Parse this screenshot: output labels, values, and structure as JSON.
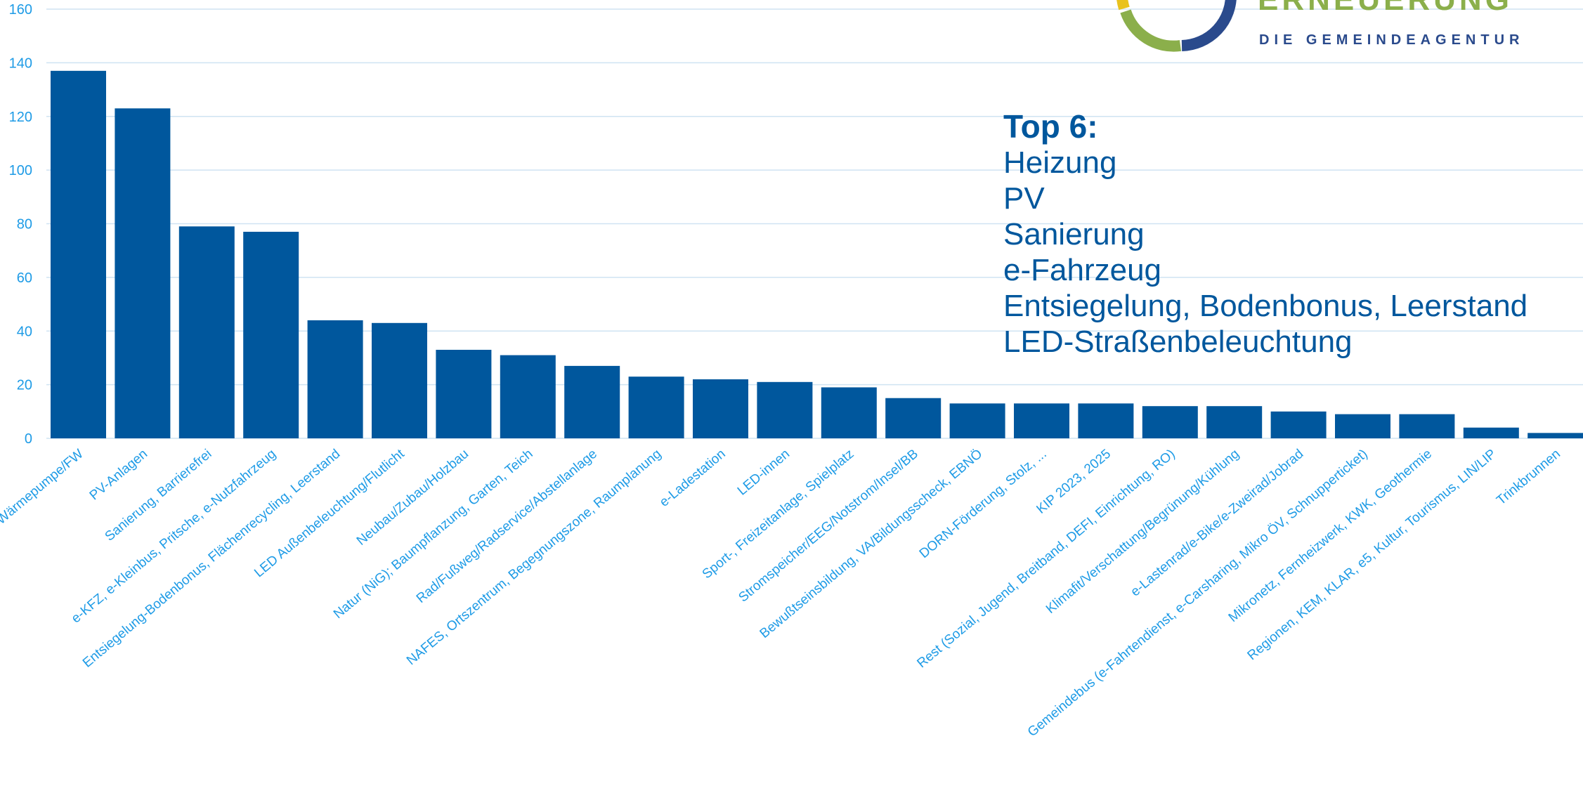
{
  "chart_data": {
    "type": "bar",
    "categories": [
      "Wärmepumpe/FW",
      "PV-Anlagen",
      "Sanierung, Barrierefrei",
      "e-KFZ, e-Kleinbus, Pritsche, e-Nutzfahrzeug",
      "Entsiegelung-Bodenbonus, Flächenrecycling, Leerstand",
      "LED Außenbeleuchtung/Flutlicht",
      "Neubau/Zubau/Holzbau",
      "Natur (NiG); Baumpflanzung, Garten, Teich",
      "Rad/Fußweg/Radservice/Abstellanlage",
      "NAFES, Ortszentrum, Begegnungszone, Raumplanung",
      "e-Ladestation",
      "LED-innen",
      "Sport-, Freizeitanlage, Spielplatz",
      "Stromspeicher/EEG/Notstrom/Insel/BB",
      "Bewußtseinsbildung, VA/Bildungsscheck, EBNÖ",
      "DORN-Förderung, Stolz, ...",
      "KIP 2023, 2025",
      "Rest (Sozial, Jugend, Breitband, DEFI, Einrichtung, RO)",
      "Klimafit/Verschattung/Begrünung/Kühlung",
      "e-Lastenrad/e-Bike/e-Zweirad/Jobrad",
      "Gemeindebus (e-Fahrtendienst, e-Carsharing, Mikro ÖV, Schnupperticket)",
      "Mikronetz, Fernheizwerk, KWK, Geothermie",
      "Regionen, KEM, KLAR, e5, Kultur, Tourismus, LIN/LIP",
      "Trinkbrunnen"
    ],
    "values": [
      137,
      123,
      79,
      77,
      44,
      43,
      33,
      31,
      27,
      23,
      22,
      21,
      19,
      15,
      13,
      13,
      13,
      12,
      12,
      10,
      9,
      9,
      4,
      2
    ],
    "y_ticks": [
      "0",
      "20",
      "40",
      "60",
      "80",
      "100",
      "120",
      "140",
      "160"
    ],
    "ylim": [
      0,
      160
    ],
    "grid": true,
    "colors": {
      "bar": "#00579D",
      "tick_label": "#1E9BE6",
      "grid": "#CFE3F2"
    }
  },
  "annotation": {
    "title": "Top 6:",
    "lines": [
      "Heizung",
      "PV",
      "Sanierung",
      "e-Fahrzeug",
      "Entsiegelung, Bodenbonus, Leerstand",
      "LED-Straßenbeleuchtung"
    ]
  },
  "logo": {
    "wordmark": "ERNEUERUNG",
    "tagline": "DIE GEMEINDEAGENTUR"
  }
}
